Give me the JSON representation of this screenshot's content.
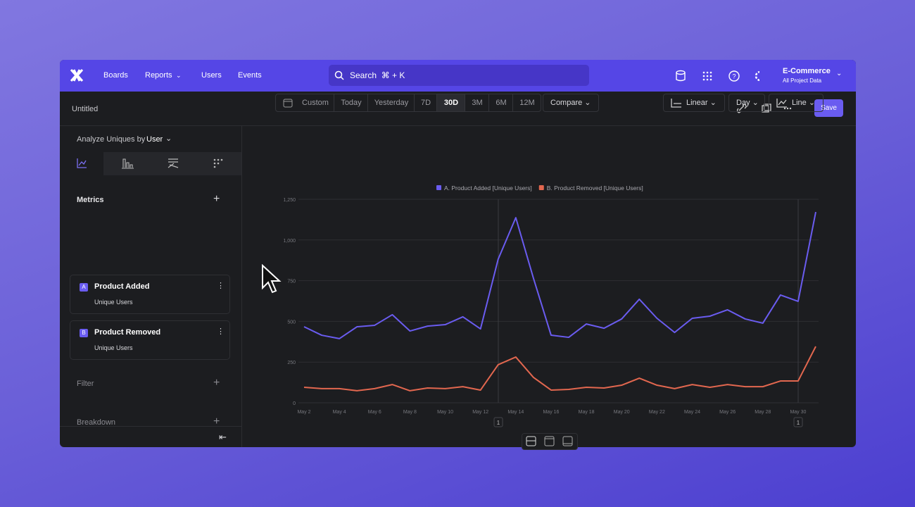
{
  "nav": {
    "items": [
      "Boards",
      "Reports",
      "Users",
      "Events"
    ],
    "search": "Search  ⌘ + K",
    "project": "E-Commerce",
    "project_sub": "All Project Data"
  },
  "toolbar": {
    "title": "Untitled",
    "save": "Save"
  },
  "sidebar": {
    "analyze_label": "Analyze Uniques by",
    "analyze_value": "User",
    "metrics_title": "Metrics",
    "metrics": [
      {
        "letter": "A",
        "name": "Product Added",
        "sub": "Unique Users"
      },
      {
        "letter": "B",
        "name": "Product Removed",
        "sub": "Unique Users"
      }
    ],
    "filter": "Filter",
    "breakdown": "Breakdown"
  },
  "controls": {
    "ranges": [
      "Custom",
      "Today",
      "Yesterday",
      "7D",
      "30D",
      "3M",
      "6M",
      "12M"
    ],
    "compare": "Compare",
    "scale": "Linear",
    "interval": "Day",
    "chart_type": "Line"
  },
  "chart_data": {
    "type": "line",
    "categories": [
      "May 2",
      null,
      "May 4",
      null,
      "May 6",
      null,
      "May 8",
      null,
      "May 10",
      null,
      "May 12",
      null,
      "May 14",
      null,
      "May 16",
      null,
      "May 18",
      null,
      "May 20",
      null,
      "May 22",
      null,
      "May 24",
      null,
      "May 26",
      null,
      "May 28",
      null,
      "May 30",
      null
    ],
    "series": [
      {
        "name": "A. Product Added [Unique Users]",
        "color": "#6a5cf0",
        "values": [
          467,
          415,
          394,
          467,
          476,
          541,
          441,
          471,
          480,
          528,
          454,
          882,
          1137,
          765,
          415,
          402,
          484,
          458,
          515,
          636,
          519,
          432,
          519,
          532,
          571,
          515,
          489,
          662,
          623,
          1172
        ]
      },
      {
        "name": "B. Product Removed [Unique Users]",
        "color": "#e2674f",
        "values": [
          95,
          87,
          87,
          74,
          87,
          112,
          74,
          91,
          87,
          99,
          78,
          234,
          281,
          156,
          78,
          82,
          95,
          91,
          108,
          151,
          108,
          87,
          112,
          95,
          112,
          99,
          99,
          134,
          134,
          346
        ]
      }
    ],
    "ylim": [
      0,
      1250
    ],
    "yticks": [
      0,
      250,
      500,
      750,
      {
        "value": 1000,
        "label": "1,000"
      },
      {
        "value": 1250,
        "label": "1,250"
      }
    ],
    "grid": true,
    "annotations": [
      "1",
      "1"
    ]
  }
}
